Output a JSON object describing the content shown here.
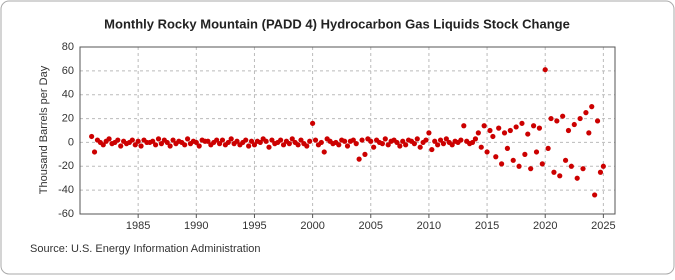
{
  "chart_data": {
    "type": "scatter",
    "title": "Monthly Rocky Mountain (PADD 4) Hydrocarbon Gas Liquids Stock Change",
    "y_label": "Thousand Barrels per Day",
    "source": "Source: U.S. Energy Information Administration",
    "color": "#cc0000",
    "grid": true,
    "xlim": [
      1980,
      2026
    ],
    "ylim": [
      -60,
      80
    ],
    "xticks": [
      1985,
      1990,
      1995,
      2000,
      2005,
      2010,
      2015,
      2020,
      2025
    ],
    "yticks": [
      -60,
      -40,
      -20,
      0,
      20,
      40,
      60,
      80
    ],
    "x": [
      1981,
      1981.25,
      1981.5,
      1981.75,
      1982,
      1982.25,
      1982.5,
      1982.75,
      1983,
      1983.25,
      1983.5,
      1983.75,
      1984,
      1984.25,
      1984.5,
      1984.75,
      1985,
      1985.25,
      1985.5,
      1985.75,
      1986,
      1986.25,
      1986.5,
      1986.75,
      1987,
      1987.25,
      1987.5,
      1987.75,
      1988,
      1988.25,
      1988.5,
      1988.75,
      1989,
      1989.25,
      1989.5,
      1989.75,
      1990,
      1990.25,
      1990.5,
      1990.75,
      1991,
      1991.25,
      1991.5,
      1991.75,
      1992,
      1992.25,
      1992.5,
      1992.75,
      1993,
      1993.25,
      1993.5,
      1993.75,
      1994,
      1994.25,
      1994.5,
      1994.75,
      1995,
      1995.25,
      1995.5,
      1995.75,
      1996,
      1996.25,
      1996.5,
      1996.75,
      1997,
      1997.25,
      1997.5,
      1997.75,
      1998,
      1998.25,
      1998.5,
      1998.75,
      1999,
      1999.25,
      1999.5,
      1999.75,
      2000,
      2000.25,
      2000.5,
      2000.75,
      2001,
      2001.25,
      2001.5,
      2001.75,
      2002,
      2002.25,
      2002.5,
      2002.75,
      2003,
      2003.25,
      2003.5,
      2003.75,
      2004,
      2004.25,
      2004.5,
      2004.75,
      2005,
      2005.25,
      2005.5,
      2005.75,
      2006,
      2006.25,
      2006.5,
      2006.75,
      2007,
      2007.25,
      2007.5,
      2007.75,
      2008,
      2008.25,
      2008.5,
      2008.75,
      2009,
      2009.25,
      2009.5,
      2009.75,
      2010,
      2010.25,
      2010.5,
      2010.75,
      2011,
      2011.25,
      2011.5,
      2011.75,
      2012,
      2012.25,
      2012.5,
      2012.75,
      2013,
      2013.25,
      2013.5,
      2013.75,
      2014,
      2014.25,
      2014.5,
      2014.75,
      2015,
      2015.25,
      2015.5,
      2015.75,
      2016,
      2016.25,
      2016.5,
      2016.75,
      2017,
      2017.25,
      2017.5,
      2017.75,
      2018,
      2018.25,
      2018.5,
      2018.75,
      2019,
      2019.25,
      2019.5,
      2019.75,
      2020,
      2020.25,
      2020.5,
      2020.75,
      2021,
      2021.25,
      2021.5,
      2021.75,
      2022,
      2022.25,
      2022.5,
      2022.75,
      2023,
      2023.25,
      2023.5,
      2023.75,
      2024,
      2024.25,
      2024.5,
      2024.75,
      2025
    ],
    "values": [
      5,
      -8,
      2,
      0,
      -2,
      1,
      3,
      -1,
      0,
      2,
      -3,
      1,
      -1,
      0,
      2,
      -2,
      1,
      -3,
      2,
      0,
      0,
      1,
      -2,
      3,
      -1,
      2,
      0,
      -3,
      2,
      -1,
      1,
      0,
      -2,
      3,
      -1,
      1,
      0,
      -3,
      2,
      1,
      1,
      -2,
      0,
      2,
      -1,
      2,
      -2,
      0,
      3,
      -1,
      1,
      -2,
      0,
      2,
      -3,
      1,
      -2,
      1,
      0,
      3,
      1,
      -4,
      2,
      -1,
      0,
      2,
      -2,
      1,
      -1,
      3,
      0,
      -2,
      2,
      -1,
      -3,
      1,
      16,
      2,
      -2,
      0,
      -8,
      3,
      1,
      -1,
      0,
      -2,
      2,
      1,
      -3,
      1,
      2,
      -1,
      -14,
      2,
      -10,
      3,
      1,
      -4,
      2,
      0,
      -1,
      3,
      -2,
      1,
      2,
      0,
      -3,
      1,
      -2,
      2,
      1,
      -1,
      3,
      -4,
      0,
      2,
      8,
      -6,
      1,
      -2,
      2,
      -1,
      3,
      0,
      -2,
      1,
      0,
      2,
      14,
      1,
      -1,
      0,
      3,
      8,
      -4,
      14,
      -8,
      10,
      5,
      -12,
      12,
      -18,
      8,
      -5,
      10,
      -15,
      13,
      -20,
      16,
      -10,
      7,
      -22,
      14,
      -8,
      12,
      -18,
      61,
      -5,
      20,
      -25,
      18,
      -28,
      22,
      -15,
      10,
      -20,
      15,
      -30,
      20,
      -22,
      25,
      8,
      30,
      -44,
      18,
      -25,
      -20
    ]
  }
}
